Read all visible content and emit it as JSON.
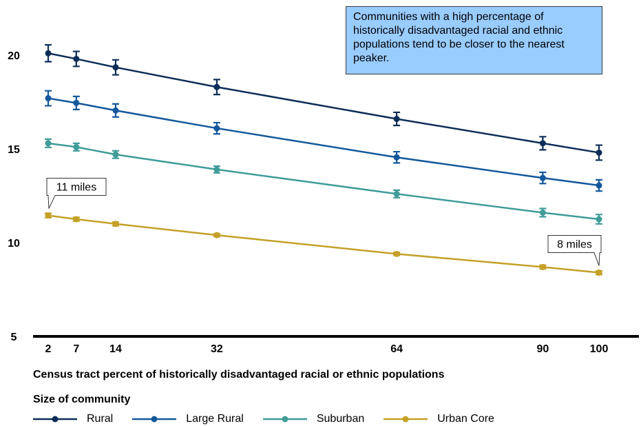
{
  "chart_data": {
    "type": "line",
    "title": "",
    "xlabel": "Census tract percent of historically disadvantaged racial or ethnic populations",
    "ylabel": "",
    "x": [
      2,
      7,
      14,
      32,
      64,
      90,
      100
    ],
    "x_tick_labels": [
      "2",
      "7",
      "14",
      "32",
      "64",
      "90",
      "100"
    ],
    "y_tick_labels": [
      "5",
      "10",
      "15",
      "20"
    ],
    "ylim": [
      5,
      21
    ],
    "grid": false,
    "error_bars": true,
    "legend_title": "Size of community",
    "legend_position": "bottom",
    "series": [
      {
        "name": "Rural",
        "color": "#0c2d57",
        "values": [
          20.1,
          19.8,
          19.35,
          18.3,
          16.6,
          15.3,
          14.8
        ],
        "error": [
          0.45,
          0.4,
          0.4,
          0.4,
          0.35,
          0.35,
          0.4
        ]
      },
      {
        "name": "Large Rural",
        "color": "#14589c",
        "values": [
          17.7,
          17.45,
          17.05,
          16.1,
          14.55,
          13.45,
          13.05
        ],
        "error": [
          0.4,
          0.35,
          0.35,
          0.3,
          0.3,
          0.3,
          0.3
        ]
      },
      {
        "name": "Suburban",
        "color": "#3f9c98",
        "values": [
          15.3,
          15.1,
          14.7,
          13.9,
          12.6,
          11.6,
          11.25
        ],
        "error": [
          0.22,
          0.2,
          0.2,
          0.18,
          0.2,
          0.22,
          0.25
        ]
      },
      {
        "name": "Urban Core",
        "color": "#c4a027",
        "values": [
          11.45,
          11.25,
          11.0,
          10.4,
          9.4,
          8.7,
          8.4
        ],
        "error": [
          0.12,
          0.1,
          0.1,
          0.08,
          0.08,
          0.1,
          0.1
        ]
      }
    ],
    "callouts": [
      {
        "text": "11 miles",
        "series": "Urban Core",
        "x": 2
      },
      {
        "text": "8 miles",
        "series": "Urban Core",
        "x": 100
      }
    ],
    "annotation": "Communities with a high percentage of historically disadvantaged racial and ethnic populations tend to be closer to the nearest peaker."
  }
}
